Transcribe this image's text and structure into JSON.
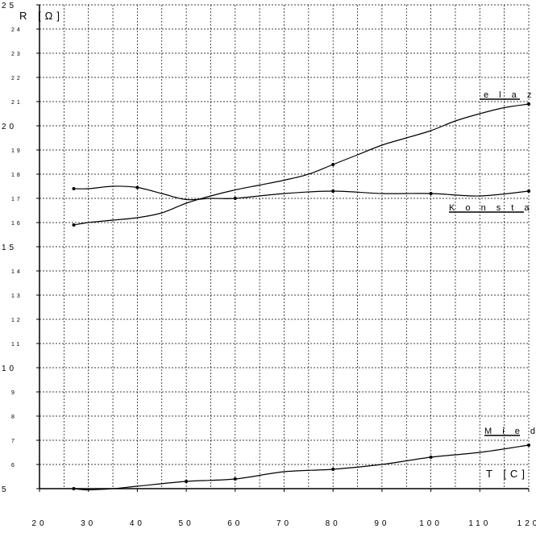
{
  "chart_data": {
    "type": "line",
    "ylabel": "R [Ω]",
    "xlabel": "T [C]",
    "xlim": [
      20,
      120
    ],
    "ylim": [
      5,
      25
    ],
    "x_ticks": [
      20,
      30,
      40,
      50,
      60,
      70,
      80,
      90,
      100,
      110,
      120
    ],
    "x_tick_labels": [
      "20",
      "30",
      "40",
      "50",
      "60",
      "70",
      "80",
      "90",
      "100",
      "110",
      "120"
    ],
    "y_ticks": [
      5,
      6,
      7,
      8,
      9,
      10,
      11,
      12,
      13,
      14,
      15,
      16,
      17,
      18,
      19,
      20,
      21,
      22,
      23,
      24,
      25
    ],
    "y_tick_labels": [
      "5",
      "6",
      "7",
      "8",
      "9",
      "10",
      "11",
      "12",
      "13",
      "14",
      "15",
      "16",
      "17",
      "18",
      "19",
      "20",
      "21",
      "22",
      "23",
      "24",
      "25"
    ],
    "grid": true,
    "series": [
      {
        "name": "elazo",
        "color": "#000000",
        "x": [
          27,
          30,
          35,
          40,
          45,
          50,
          55,
          60,
          65,
          70,
          75,
          80,
          85,
          90,
          95,
          100,
          105,
          110,
          115,
          120
        ],
        "y": [
          15.9,
          16.0,
          16.1,
          16.2,
          16.4,
          16.8,
          17.1,
          17.35,
          17.55,
          17.75,
          18.0,
          18.4,
          18.8,
          19.2,
          19.5,
          19.8,
          20.2,
          20.5,
          20.75,
          20.9
        ]
      },
      {
        "name": "Konstantan",
        "color": "#000000",
        "x": [
          27,
          30,
          35,
          40,
          45,
          50,
          55,
          60,
          70,
          80,
          90,
          100,
          110,
          120
        ],
        "y": [
          17.4,
          17.4,
          17.5,
          17.45,
          17.2,
          16.95,
          17.0,
          17.0,
          17.2,
          17.3,
          17.2,
          17.2,
          17.1,
          17.3
        ]
      },
      {
        "name": "Miedź",
        "color": "#000000",
        "x": [
          27,
          30,
          35,
          40,
          50,
          60,
          70,
          80,
          90,
          100,
          110,
          120
        ],
        "y": [
          5.0,
          4.95,
          5.0,
          5.1,
          5.3,
          5.4,
          5.7,
          5.8,
          6.0,
          6.3,
          6.5,
          6.8
        ]
      }
    ],
    "series_labels": [
      "e l a z o",
      "K o n s t a n t a n",
      "M i e d"
    ],
    "markers": {
      "elazo": [
        [
          27,
          15.9
        ],
        [
          80,
          18.4
        ],
        [
          120,
          20.9
        ]
      ],
      "Konstantan": [
        [
          27,
          17.4
        ],
        [
          40,
          17.45
        ],
        [
          60,
          17.0
        ],
        [
          80,
          17.3
        ],
        [
          100,
          17.2
        ],
        [
          120,
          17.3
        ]
      ],
      "Miedź": [
        [
          27,
          5.0
        ],
        [
          50,
          5.3
        ],
        [
          60,
          5.4
        ],
        [
          80,
          5.8
        ],
        [
          100,
          6.3
        ],
        [
          120,
          6.8
        ]
      ]
    }
  }
}
